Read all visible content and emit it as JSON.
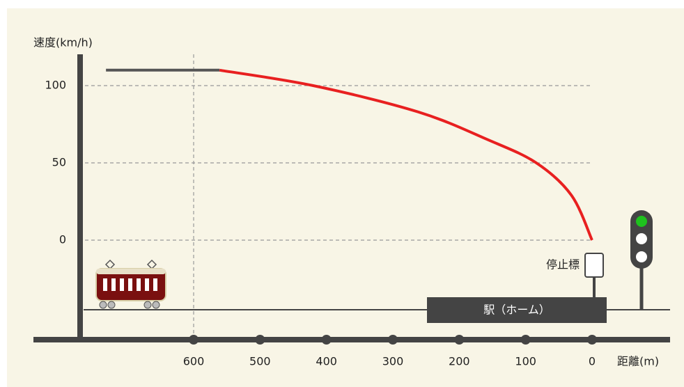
{
  "chart_data": {
    "type": "line",
    "y_label": "速度(km/h)",
    "x_label": "距離(m)",
    "stop_sign_label": "停止標",
    "station_label": "駅（ホーム）",
    "series": [
      {
        "color": "#555555",
        "x": [
          732,
          561
        ],
        "values": [
          110,
          110
        ]
      },
      {
        "color": "#e82020",
        "x": [
          561,
          420,
          262,
          157,
          84,
          31,
          0
        ],
        "values": [
          110,
          100,
          83,
          65,
          50,
          29,
          0
        ]
      }
    ],
    "xlim": [
      600,
      0
    ],
    "xticks": [
      600,
      500,
      400,
      300,
      200,
      100,
      0
    ],
    "ylim": [
      0,
      100
    ],
    "yticks": [
      0,
      50,
      100
    ],
    "grid": true
  }
}
